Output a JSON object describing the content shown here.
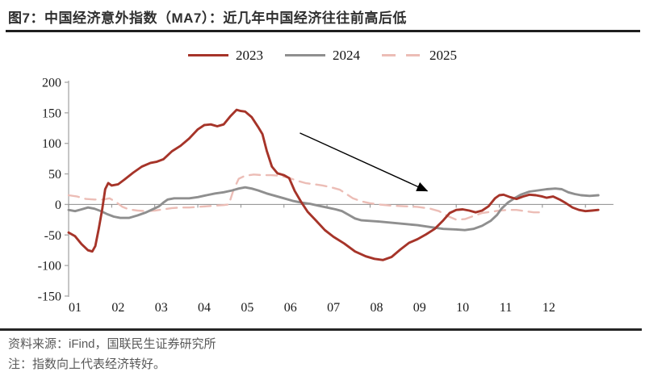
{
  "header": {
    "title": "图7：中国经济意外指数（MA7）：近几年中国经济往往前高后低"
  },
  "footer": {
    "source": "资料来源：iFind，国联民生证券研究所",
    "note": "注：指数向上代表经济转好。"
  },
  "chart_data": {
    "type": "line",
    "title": "中国经济意外指数（MA7）",
    "x_tick_labels": [
      "01",
      "02",
      "03",
      "04",
      "05",
      "06",
      "07",
      "08",
      "09",
      "10",
      "11",
      "12"
    ],
    "x_range_months": [
      0,
      12.65
    ],
    "ylim": [
      -150,
      200
    ],
    "y_ticks": [
      200,
      150,
      100,
      50,
      0,
      -50,
      -100,
      -150
    ],
    "grid": "none",
    "legend_position": "top",
    "axis_color": "#a8a8a8",
    "zero_line_color": "#8c8c8c",
    "annotation_arrow": {
      "from_month": 5.37,
      "from_value": 117,
      "to_month": 8.33,
      "to_value": 22,
      "color": "#000000"
    },
    "series": [
      {
        "name": "2025",
        "color": "#ecbdb6",
        "style": "dashed",
        "points": [
          [
            0,
            15
          ],
          [
            0.2,
            13
          ],
          [
            0.4,
            9
          ],
          [
            0.6,
            8
          ],
          [
            0.8,
            8
          ],
          [
            0.95,
            10
          ],
          [
            1.1,
            4
          ],
          [
            1.25,
            -4
          ],
          [
            1.4,
            -8
          ],
          [
            1.6,
            -10
          ],
          [
            1.8,
            -11
          ],
          [
            2,
            -10
          ],
          [
            2.2,
            -8
          ],
          [
            2.4,
            -6
          ],
          [
            2.6,
            -5
          ],
          [
            2.8,
            -5
          ],
          [
            3,
            -4
          ],
          [
            3.2,
            -3
          ],
          [
            3.4,
            -2
          ],
          [
            3.6,
            -1
          ],
          [
            3.72,
            0
          ],
          [
            3.82,
            22
          ],
          [
            3.95,
            42
          ],
          [
            4.1,
            47
          ],
          [
            4.3,
            49
          ],
          [
            4.5,
            48
          ],
          [
            4.7,
            48
          ],
          [
            4.9,
            47
          ],
          [
            5.1,
            44
          ],
          [
            5.3,
            39
          ],
          [
            5.5,
            35
          ],
          [
            5.7,
            33
          ],
          [
            5.9,
            31
          ],
          [
            6.1,
            28
          ],
          [
            6.3,
            24
          ],
          [
            6.45,
            17
          ],
          [
            6.6,
            10
          ],
          [
            6.8,
            5
          ],
          [
            7,
            2
          ],
          [
            7.2,
            0
          ],
          [
            7.5,
            -2
          ],
          [
            7.8,
            -3
          ],
          [
            8.1,
            -4
          ],
          [
            8.4,
            -7
          ],
          [
            8.6,
            -11
          ],
          [
            8.8,
            -19
          ],
          [
            9,
            -25
          ],
          [
            9.2,
            -24
          ],
          [
            9.4,
            -19
          ],
          [
            9.6,
            -14
          ],
          [
            9.8,
            -12
          ],
          [
            10,
            -10
          ],
          [
            10.2,
            -9
          ],
          [
            10.4,
            -9
          ],
          [
            10.6,
            -11
          ],
          [
            10.8,
            -13
          ],
          [
            11,
            -13
          ]
        ]
      },
      {
        "name": "2024",
        "color": "#8f8f8f",
        "style": "solid",
        "points": [
          [
            0,
            -9
          ],
          [
            0.15,
            -11
          ],
          [
            0.3,
            -8
          ],
          [
            0.45,
            -5
          ],
          [
            0.6,
            -7
          ],
          [
            0.75,
            -11
          ],
          [
            0.9,
            -16
          ],
          [
            1.05,
            -20
          ],
          [
            1.2,
            -22
          ],
          [
            1.4,
            -22
          ],
          [
            1.6,
            -18
          ],
          [
            1.8,
            -13
          ],
          [
            1.95,
            -8
          ],
          [
            2.1,
            -3
          ],
          [
            2.2,
            3
          ],
          [
            2.3,
            8
          ],
          [
            2.45,
            10
          ],
          [
            2.6,
            10
          ],
          [
            2.8,
            10
          ],
          [
            3,
            12
          ],
          [
            3.2,
            15
          ],
          [
            3.4,
            18
          ],
          [
            3.6,
            20
          ],
          [
            3.8,
            23
          ],
          [
            3.95,
            26
          ],
          [
            4.1,
            28
          ],
          [
            4.25,
            26
          ],
          [
            4.4,
            23
          ],
          [
            4.6,
            18
          ],
          [
            4.8,
            14
          ],
          [
            5,
            10
          ],
          [
            5.2,
            6
          ],
          [
            5.4,
            3
          ],
          [
            5.6,
            1
          ],
          [
            5.8,
            -2
          ],
          [
            6,
            -5
          ],
          [
            6.2,
            -8
          ],
          [
            6.35,
            -11
          ],
          [
            6.5,
            -17
          ],
          [
            6.65,
            -23
          ],
          [
            6.8,
            -26
          ],
          [
            7,
            -27
          ],
          [
            7.2,
            -28
          ],
          [
            7.5,
            -30
          ],
          [
            7.8,
            -32
          ],
          [
            8.1,
            -34
          ],
          [
            8.4,
            -37
          ],
          [
            8.7,
            -40
          ],
          [
            9,
            -41
          ],
          [
            9.2,
            -42
          ],
          [
            9.4,
            -40
          ],
          [
            9.6,
            -35
          ],
          [
            9.8,
            -27
          ],
          [
            9.95,
            -17
          ],
          [
            10.05,
            -7
          ],
          [
            10.2,
            3
          ],
          [
            10.35,
            10
          ],
          [
            10.5,
            16
          ],
          [
            10.7,
            21
          ],
          [
            10.9,
            23
          ],
          [
            11.1,
            25
          ],
          [
            11.3,
            26
          ],
          [
            11.45,
            25
          ],
          [
            11.6,
            20
          ],
          [
            11.75,
            17
          ],
          [
            11.9,
            15
          ],
          [
            12.1,
            14
          ],
          [
            12.3,
            15
          ]
        ]
      },
      {
        "name": "2023",
        "color": "#a63429",
        "style": "solid",
        "points": [
          [
            0,
            -46
          ],
          [
            0.15,
            -52
          ],
          [
            0.3,
            -65
          ],
          [
            0.45,
            -75
          ],
          [
            0.55,
            -77
          ],
          [
            0.62,
            -68
          ],
          [
            0.7,
            -40
          ],
          [
            0.78,
            -8
          ],
          [
            0.85,
            25
          ],
          [
            0.92,
            35
          ],
          [
            1,
            31
          ],
          [
            1.15,
            33
          ],
          [
            1.3,
            41
          ],
          [
            1.5,
            52
          ],
          [
            1.7,
            62
          ],
          [
            1.9,
            68
          ],
          [
            2.05,
            70
          ],
          [
            2.2,
            74
          ],
          [
            2.4,
            87
          ],
          [
            2.6,
            96
          ],
          [
            2.8,
            108
          ],
          [
            3,
            123
          ],
          [
            3.15,
            130
          ],
          [
            3.3,
            131
          ],
          [
            3.45,
            128
          ],
          [
            3.6,
            131
          ],
          [
            3.75,
            144
          ],
          [
            3.9,
            155
          ],
          [
            4,
            153
          ],
          [
            4.1,
            152
          ],
          [
            4.25,
            143
          ],
          [
            4.4,
            127
          ],
          [
            4.5,
            115
          ],
          [
            4.6,
            88
          ],
          [
            4.72,
            62
          ],
          [
            4.85,
            51
          ],
          [
            5,
            48
          ],
          [
            5.12,
            43
          ],
          [
            5.25,
            22
          ],
          [
            5.4,
            4
          ],
          [
            5.55,
            -12
          ],
          [
            5.75,
            -27
          ],
          [
            5.95,
            -42
          ],
          [
            6.15,
            -53
          ],
          [
            6.4,
            -64
          ],
          [
            6.65,
            -77
          ],
          [
            6.9,
            -85
          ],
          [
            7.1,
            -89
          ],
          [
            7.3,
            -91
          ],
          [
            7.5,
            -86
          ],
          [
            7.7,
            -74
          ],
          [
            7.9,
            -63
          ],
          [
            8.1,
            -57
          ],
          [
            8.3,
            -49
          ],
          [
            8.5,
            -40
          ],
          [
            8.7,
            -26
          ],
          [
            8.85,
            -14
          ],
          [
            9,
            -9
          ],
          [
            9.15,
            -8
          ],
          [
            9.3,
            -10
          ],
          [
            9.45,
            -13
          ],
          [
            9.6,
            -10
          ],
          [
            9.75,
            -3
          ],
          [
            9.9,
            10
          ],
          [
            10,
            15
          ],
          [
            10.1,
            16
          ],
          [
            10.25,
            12
          ],
          [
            10.4,
            9
          ],
          [
            10.55,
            13
          ],
          [
            10.7,
            16
          ],
          [
            10.85,
            15
          ],
          [
            11,
            13
          ],
          [
            11.1,
            11
          ],
          [
            11.25,
            13
          ],
          [
            11.4,
            8
          ],
          [
            11.55,
            2
          ],
          [
            11.7,
            -5
          ],
          [
            11.85,
            -9
          ],
          [
            12,
            -11
          ],
          [
            12.15,
            -10
          ],
          [
            12.3,
            -9
          ]
        ]
      }
    ]
  },
  "legend": [
    {
      "label": "2023",
      "color": "#a63429",
      "style": "solid"
    },
    {
      "label": "2024",
      "color": "#8f8f8f",
      "style": "solid"
    },
    {
      "label": "2025",
      "color": "#ecbdb6",
      "style": "dashed"
    }
  ]
}
